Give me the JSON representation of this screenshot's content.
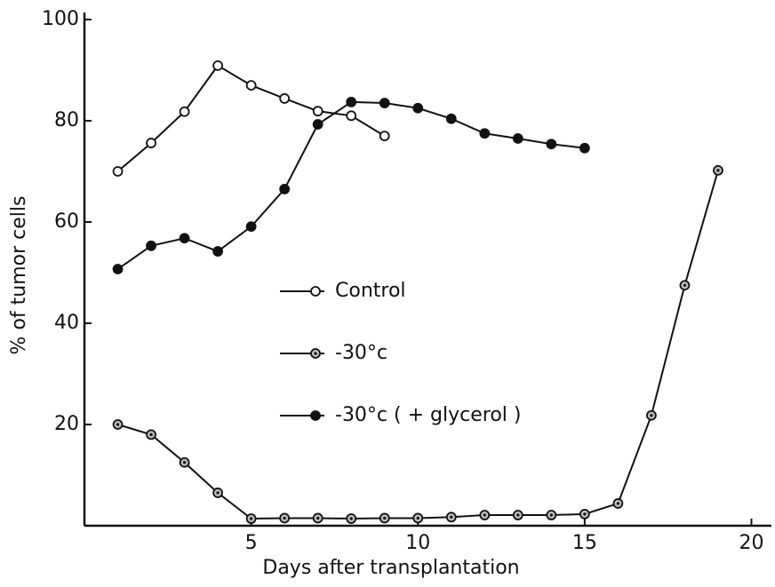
{
  "chart_data": {
    "type": "line",
    "xlabel": "Days after transplantation",
    "ylabel": "% of tumor cells",
    "xlim": [
      0,
      20.6
    ],
    "ylim": [
      0,
      100
    ],
    "xticks": [
      5,
      10,
      15,
      20
    ],
    "yticks": [
      20,
      40,
      60,
      80,
      100
    ],
    "legend": "center",
    "series": [
      {
        "name": "Control",
        "color": "#111111",
        "marker": "open",
        "x": [
          1,
          2,
          3,
          4,
          5,
          6,
          7,
          8,
          9
        ],
        "values": [
          70,
          75.6,
          81.8,
          90.9,
          87,
          84.4,
          81.9,
          81,
          77
        ]
      },
      {
        "name": "-30°c",
        "color": "#111111",
        "marker": "dotted",
        "x": [
          1,
          2,
          3,
          4,
          5,
          6,
          7,
          8,
          9,
          10,
          11,
          12,
          13,
          14,
          15,
          16,
          17,
          18,
          19
        ],
        "values": [
          20,
          18,
          12.5,
          6.5,
          1.4,
          1.5,
          1.5,
          1.4,
          1.5,
          1.5,
          1.7,
          2.1,
          2.1,
          2.1,
          2.3,
          4.4,
          21.8,
          47.5,
          70.2
        ]
      },
      {
        "name": "-30°c ( + glycerol )",
        "color": "#111111",
        "marker": "filled",
        "x": [
          1,
          2,
          3,
          4,
          5,
          6,
          7,
          8,
          9,
          10,
          11,
          12,
          13,
          14,
          15
        ],
        "values": [
          50.7,
          55.3,
          56.8,
          54.2,
          59.1,
          66.5,
          79.3,
          83.7,
          83.5,
          82.5,
          80.4,
          77.5,
          76.5,
          75.4,
          74.6
        ]
      }
    ]
  }
}
